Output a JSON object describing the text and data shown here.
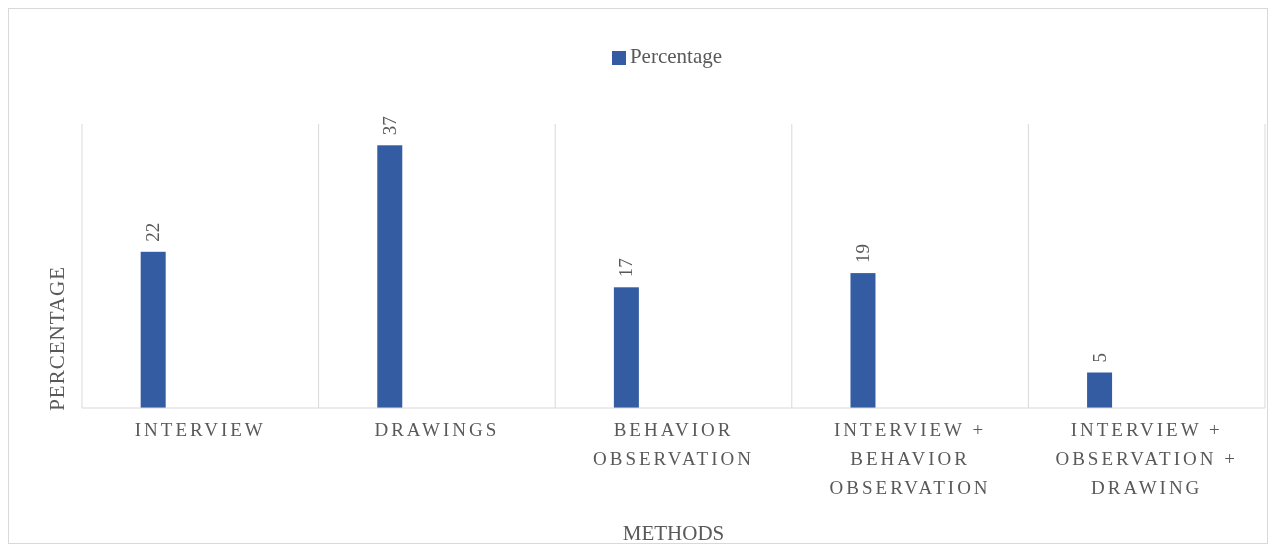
{
  "chart_data": {
    "type": "bar",
    "xlabel": "METHODS",
    "ylabel": "PERCENTAGE",
    "categories": [
      "INTERVIEW",
      "DRAWINGS",
      "BEHAVIOR OBSERVATION",
      "INTERVIEW + BEHAVIOR OBSERVATION",
      "INTERVIEW + OBSERVATION + DRAWING"
    ],
    "series": [
      {
        "name": "Percentage",
        "color": "#335ca3",
        "values": [
          22,
          37,
          17,
          19,
          5
        ]
      }
    ],
    "data_labels": true,
    "grid": "x",
    "legend": "top"
  }
}
